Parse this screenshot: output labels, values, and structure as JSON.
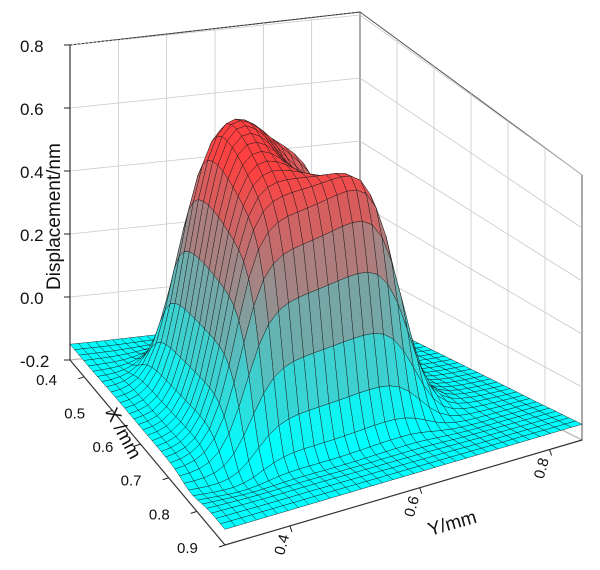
{
  "chart_data": {
    "type": "surface3d",
    "z_axis": {
      "label": "Displacement/nm",
      "ticks": [
        "0.8",
        "0.6",
        "0.4",
        "0.2",
        "0.0",
        "-0.2"
      ],
      "range": [
        -0.2,
        0.8
      ]
    },
    "x_axis": {
      "label": "X /mm",
      "ticks": [
        "0.4",
        "0.5",
        "0.6",
        "0.7",
        "0.8",
        "0.9"
      ],
      "range": [
        0.35,
        0.9
      ]
    },
    "y_axis": {
      "label": "Y/mm",
      "ticks": [
        "0.4",
        "0.6",
        "0.8"
      ],
      "range": [
        0.3,
        0.85
      ]
    },
    "grid": true,
    "surface": {
      "description_values": {
        "baseline_displacement": -0.15,
        "plateau_max": 0.72,
        "central_dip": 0.52,
        "side_trough": -0.2
      },
      "colormap": [
        "#00ffff",
        "#ff4040"
      ]
    }
  }
}
